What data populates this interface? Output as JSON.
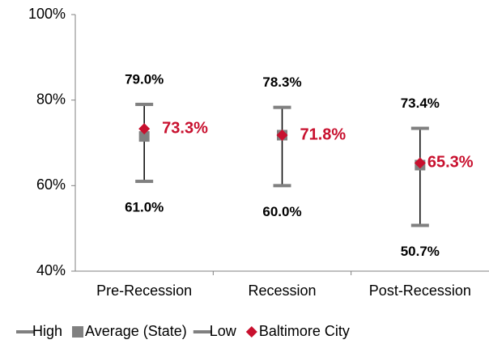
{
  "chart_data": {
    "type": "high-low",
    "categories": [
      "Pre-Recession",
      "Recession",
      "Post-Recession"
    ],
    "series": [
      {
        "name": "High",
        "color": "#808080",
        "marker": "dash",
        "values": [
          79.0,
          78.3,
          73.4
        ],
        "value_labels": [
          "79.0%",
          "78.3%",
          "73.4%"
        ]
      },
      {
        "name": "Average (State)",
        "color": "#808080",
        "marker": "square",
        "values": [
          71.5,
          71.8,
          64.8
        ]
      },
      {
        "name": "Low",
        "color": "#808080",
        "marker": "dash",
        "values": [
          61.0,
          60.0,
          50.7
        ],
        "value_labels": [
          "61.0%",
          "60.0%",
          "50.7%"
        ]
      },
      {
        "name": "Baltimore City",
        "color": "#c8102e",
        "marker": "diamond",
        "values": [
          73.3,
          71.8,
          65.3
        ],
        "value_labels": [
          "73.3%",
          "71.8%",
          "65.3%"
        ]
      }
    ],
    "ylim": [
      40,
      100
    ],
    "yticks": [
      {
        "value": 40,
        "label": "40%"
      },
      {
        "value": 60,
        "label": "60%"
      },
      {
        "value": 80,
        "label": "80%"
      },
      {
        "value": 100,
        "label": "100%"
      }
    ],
    "legend": "bottom"
  }
}
